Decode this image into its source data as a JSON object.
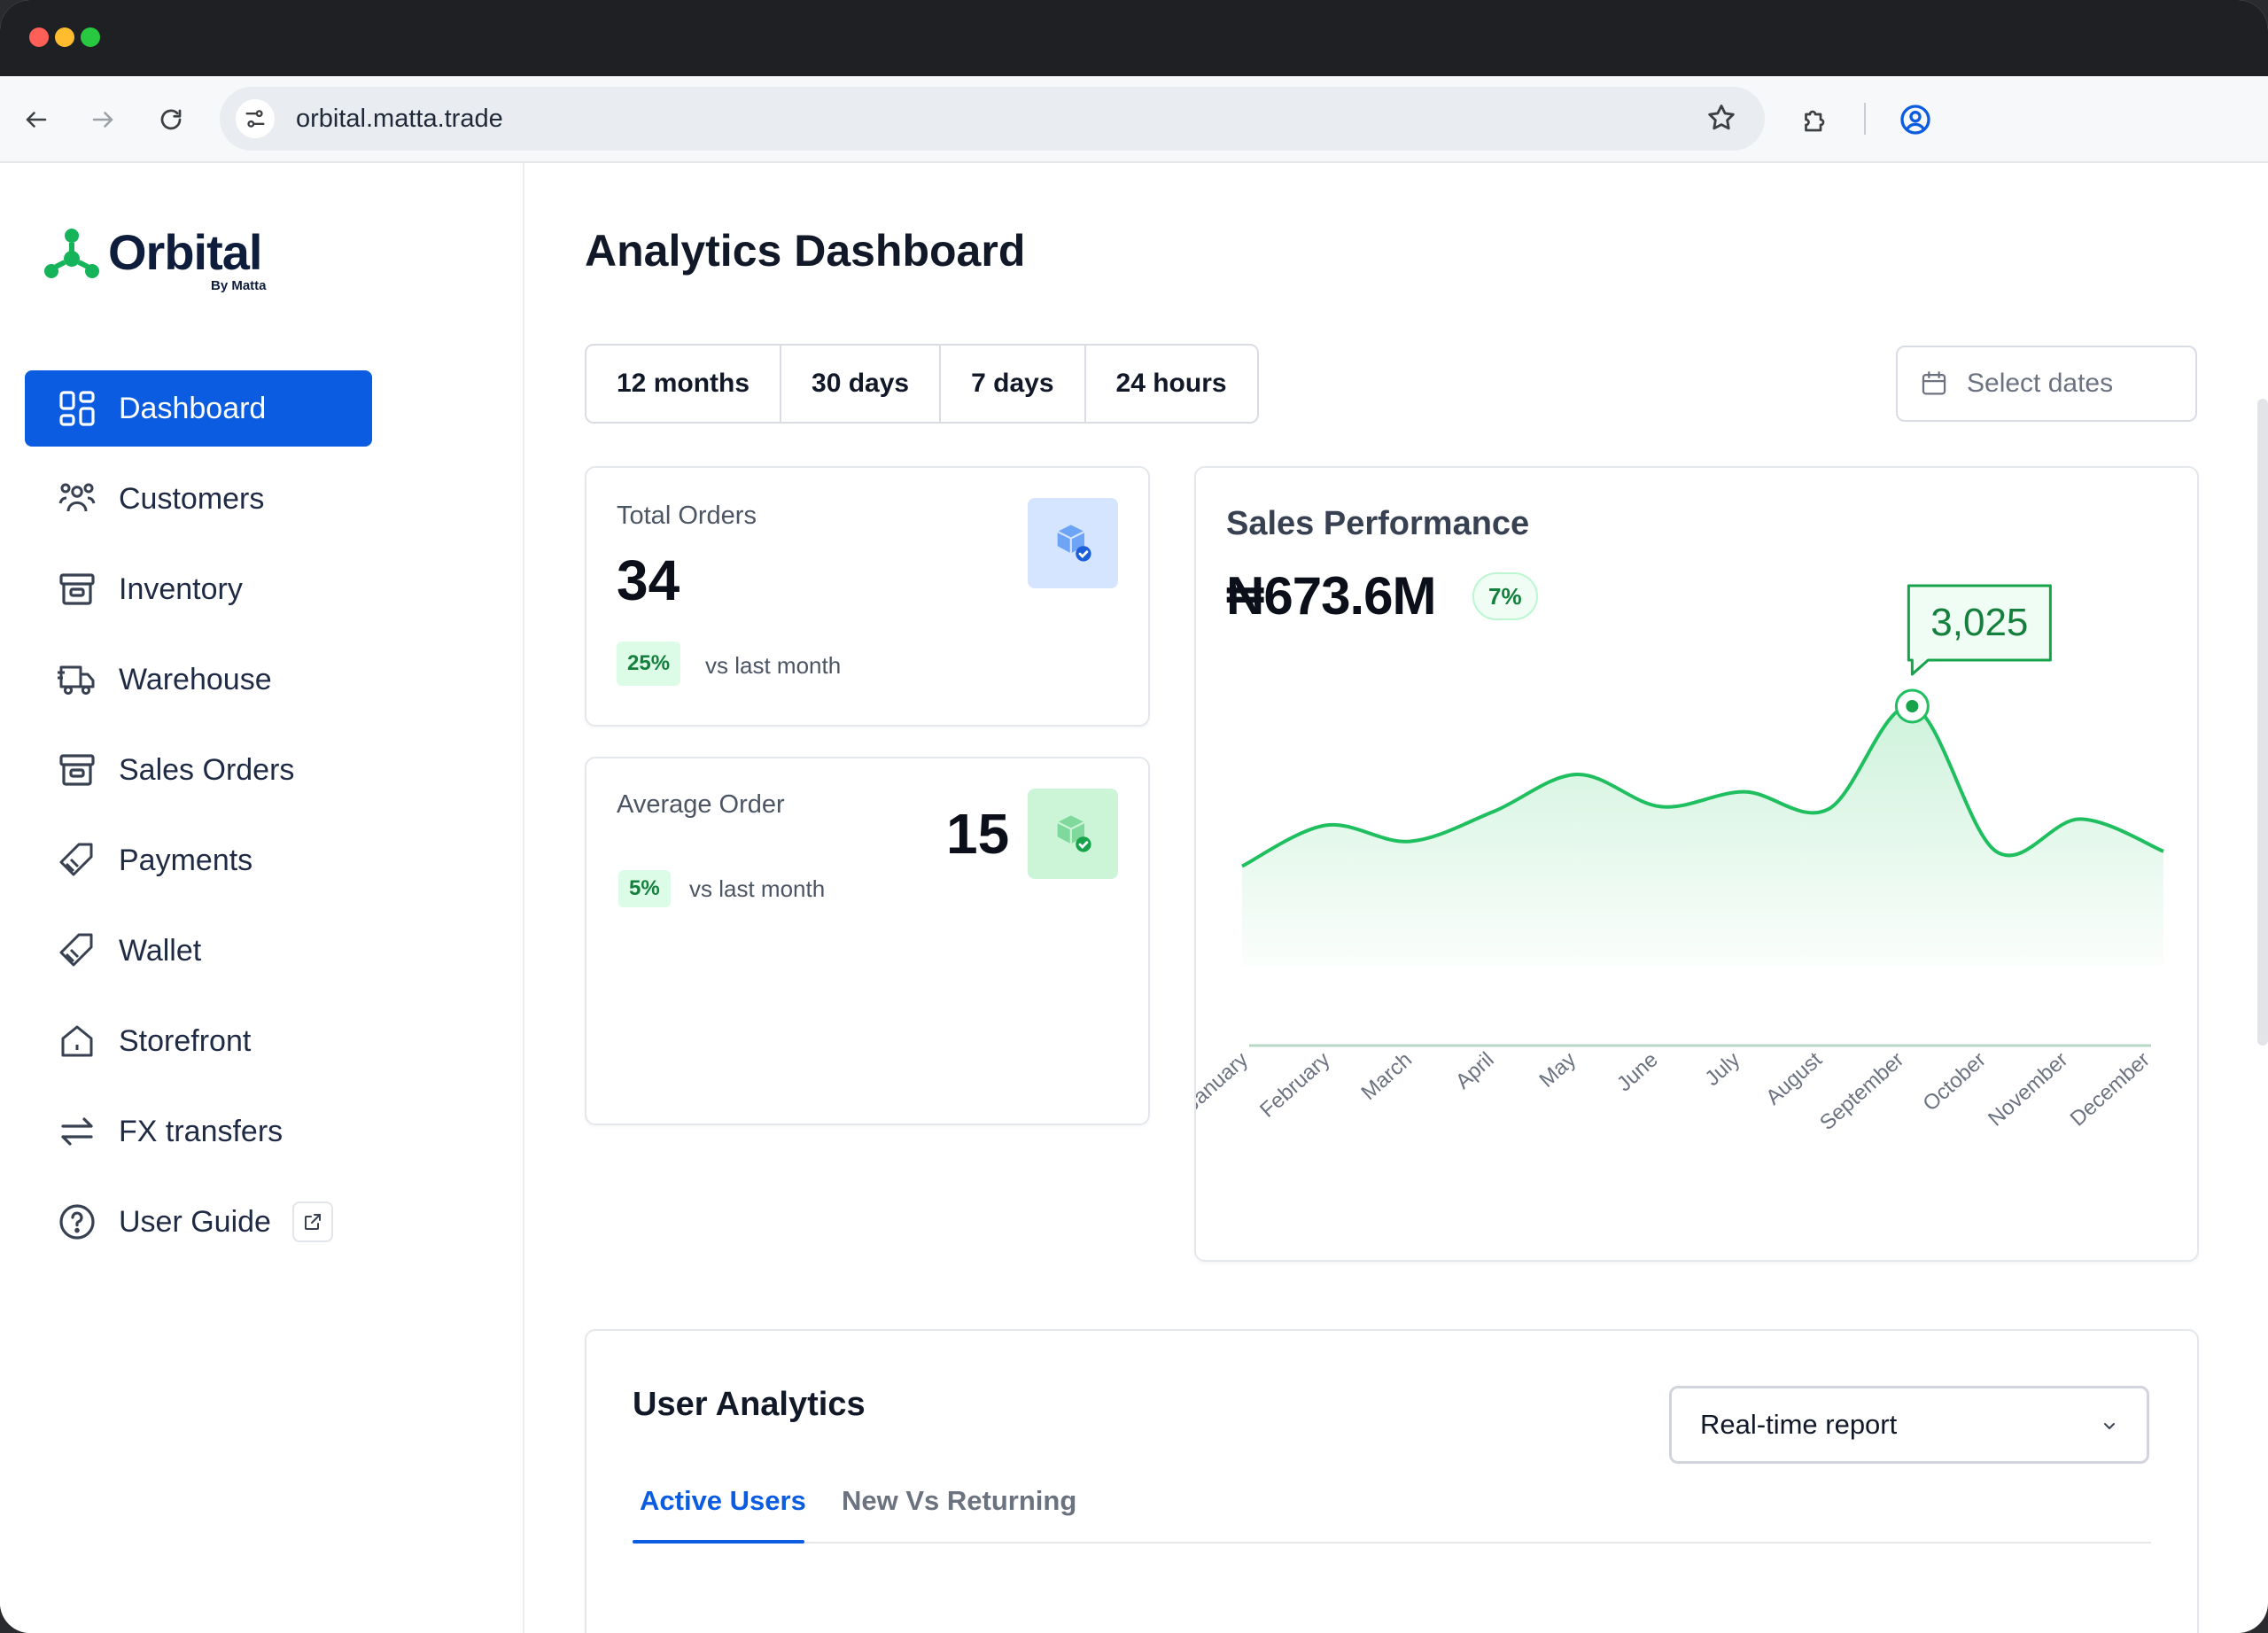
{
  "browser": {
    "url": "orbital.matta.trade"
  },
  "brand": {
    "name": "Orbital",
    "tagline": "By Matta",
    "green": "#16b45a",
    "blue": "#0b5ce0"
  },
  "sidebar": {
    "items": [
      {
        "label": "Dashboard",
        "icon": "grid-icon",
        "active": true
      },
      {
        "label": "Customers",
        "icon": "users-icon"
      },
      {
        "label": "Inventory",
        "icon": "archive-icon"
      },
      {
        "label": "Warehouse",
        "icon": "truck-icon"
      },
      {
        "label": "Sales Orders",
        "icon": "archive-icon"
      },
      {
        "label": "Payments",
        "icon": "tag-icon"
      },
      {
        "label": "Wallet",
        "icon": "tag-icon"
      },
      {
        "label": "Storefront",
        "icon": "home-icon"
      },
      {
        "label": "FX transfers",
        "icon": "arrows-icon"
      },
      {
        "label": "User Guide",
        "icon": "help-icon"
      }
    ]
  },
  "main": {
    "title": "Analytics Dashboard",
    "ranges": [
      "12 months",
      "30 days",
      "7 days",
      "24 hours"
    ],
    "date_picker": {
      "placeholder": "Select dates"
    }
  },
  "kpis": {
    "total_orders": {
      "label": "Total Orders",
      "value": "34",
      "change": "25%",
      "note": "vs last month"
    },
    "average_order": {
      "label": "Average Order",
      "value": "15",
      "change": "5%",
      "note": "vs last month"
    }
  },
  "sales": {
    "title": "Sales Performance",
    "total": "₦673.6M",
    "change": "7%",
    "tooltip": "3,025"
  },
  "chart_data": {
    "type": "area",
    "title": "Sales Performance",
    "categories": [
      "January",
      "February",
      "March",
      "April",
      "May",
      "June",
      "July",
      "August",
      "September",
      "October",
      "November",
      "December"
    ],
    "series": [
      {
        "values": [
          2380,
          2545,
          2480,
          2600,
          2750,
          2620,
          2680,
          2610,
          3025,
          2440,
          2570,
          2440
        ]
      }
    ],
    "highlight": {
      "category": "September",
      "value": "3,025"
    },
    "color": "#1fbf5f"
  },
  "user_analytics": {
    "title": "User Analytics",
    "report_select": "Real-time report",
    "tabs": [
      "Active Users",
      "New Vs Returning"
    ]
  }
}
